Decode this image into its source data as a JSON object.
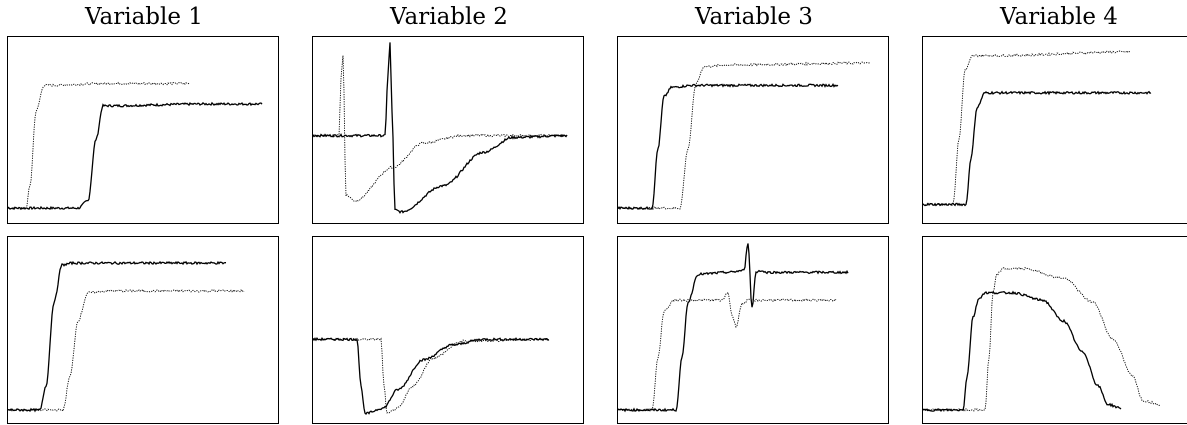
{
  "chart_data": {
    "type": "line",
    "titles": [
      "Variable 1",
      "Variable 2",
      "Variable 3",
      "Variable 4"
    ],
    "xlabel": "",
    "ylabel": "",
    "grid": false,
    "legend": "none",
    "line_color": "#000000",
    "panels": [
      {
        "row": 0,
        "col": 0,
        "series": [
          {
            "style": "solid",
            "x": [
              0,
              70,
              80,
              88,
              95,
              200,
              254
            ],
            "y": [
              0.08,
              0.08,
              0.12,
              0.45,
              0.63,
              0.64,
              0.64
            ]
          },
          {
            "style": "dotted",
            "x": [
              0,
              18,
              22,
              28,
              36,
              100,
              181
            ],
            "y": [
              0.08,
              0.08,
              0.2,
              0.6,
              0.74,
              0.75,
              0.75
            ]
          }
        ]
      },
      {
        "row": 0,
        "col": 1,
        "series": [
          {
            "style": "solid",
            "x": [
              0,
              72,
              75,
              77,
              79,
              82,
              88,
              130,
              170,
              200,
              254
            ],
            "y": [
              0.47,
              0.47,
              0.8,
              0.97,
              0.6,
              0.07,
              0.06,
              0.2,
              0.38,
              0.46,
              0.47
            ]
          },
          {
            "style": "dotted",
            "x": [
              0,
              26,
              28,
              30,
              33,
              42,
              80,
              110,
              150,
              254
            ],
            "y": [
              0.47,
              0.47,
              0.78,
              0.9,
              0.15,
              0.12,
              0.3,
              0.43,
              0.47,
              0.47
            ]
          }
        ]
      },
      {
        "row": 0,
        "col": 2,
        "series": [
          {
            "style": "solid",
            "x": [
              0,
              34,
              40,
              46,
              54,
              75,
              220
            ],
            "y": [
              0.08,
              0.08,
              0.4,
              0.68,
              0.73,
              0.74,
              0.74
            ]
          },
          {
            "style": "dotted",
            "x": [
              0,
              62,
              70,
              78,
              86,
              110,
              252
            ],
            "y": [
              0.08,
              0.08,
              0.4,
              0.75,
              0.84,
              0.85,
              0.86
            ]
          }
        ]
      },
      {
        "row": 0,
        "col": 3,
        "series": [
          {
            "style": "solid",
            "x": [
              0,
              43,
              48,
              54,
              62,
              80,
              228
            ],
            "y": [
              0.1,
              0.1,
              0.35,
              0.62,
              0.7,
              0.7,
              0.7
            ]
          },
          {
            "style": "dotted",
            "x": [
              0,
              30,
              36,
              42,
              50,
              70,
              208
            ],
            "y": [
              0.1,
              0.1,
              0.45,
              0.82,
              0.9,
              0.9,
              0.92
            ]
          }
        ]
      },
      {
        "row": 1,
        "col": 0,
        "series": [
          {
            "style": "solid",
            "x": [
              0,
              32,
              38,
              46,
              54,
              65,
              218
            ],
            "y": [
              0.07,
              0.07,
              0.2,
              0.65,
              0.85,
              0.86,
              0.86
            ]
          },
          {
            "style": "dotted",
            "x": [
              0,
              55,
              62,
              70,
              80,
              100,
              236
            ],
            "y": [
              0.07,
              0.07,
              0.25,
              0.55,
              0.7,
              0.71,
              0.71
            ]
          }
        ]
      },
      {
        "row": 1,
        "col": 1,
        "series": [
          {
            "style": "solid",
            "x": [
              0,
              44,
              48,
              52,
              70,
              85,
              110,
              140,
              170,
              236
            ],
            "y": [
              0.45,
              0.45,
              0.2,
              0.05,
              0.08,
              0.18,
              0.34,
              0.42,
              0.45,
              0.45
            ]
          },
          {
            "style": "dotted",
            "x": [
              0,
              68,
              71,
              74,
              85,
              100,
              120,
              150,
              236
            ],
            "y": [
              0.45,
              0.45,
              0.2,
              0.05,
              0.08,
              0.2,
              0.35,
              0.44,
              0.45
            ]
          }
        ]
      },
      {
        "row": 1,
        "col": 2,
        "series": [
          {
            "style": "solid",
            "x": [
              0,
              58,
              64,
              70,
              80,
              110,
              126,
              130,
              134,
              138,
              142,
              148,
              160,
              230
            ],
            "y": [
              0.07,
              0.07,
              0.35,
              0.65,
              0.8,
              0.81,
              0.82,
              0.97,
              0.62,
              0.81,
              0.82,
              0.81,
              0.81,
              0.81
            ]
          },
          {
            "style": "dotted",
            "x": [
              0,
              34,
              40,
              46,
              56,
              104,
              110,
              114,
              118,
              124,
              130,
              150,
              218
            ],
            "y": [
              0.07,
              0.07,
              0.35,
              0.6,
              0.66,
              0.66,
              0.7,
              0.58,
              0.52,
              0.64,
              0.66,
              0.66,
              0.66
            ]
          }
        ]
      },
      {
        "row": 1,
        "col": 3,
        "series": [
          {
            "style": "solid",
            "x": [
              0,
              40,
              44,
              50,
              56,
              62,
              90,
              120,
              140,
              160,
              175,
              185,
              198
            ],
            "y": [
              0.07,
              0.07,
              0.25,
              0.57,
              0.67,
              0.7,
              0.7,
              0.66,
              0.55,
              0.38,
              0.2,
              0.1,
              0.08
            ]
          },
          {
            "style": "dotted",
            "x": [
              0,
              62,
              66,
              70,
              74,
              80,
              100,
              140,
              170,
              190,
              210,
              220,
              238
            ],
            "y": [
              0.07,
              0.07,
              0.35,
              0.7,
              0.8,
              0.83,
              0.83,
              0.78,
              0.65,
              0.45,
              0.25,
              0.12,
              0.1
            ]
          }
        ]
      }
    ]
  }
}
